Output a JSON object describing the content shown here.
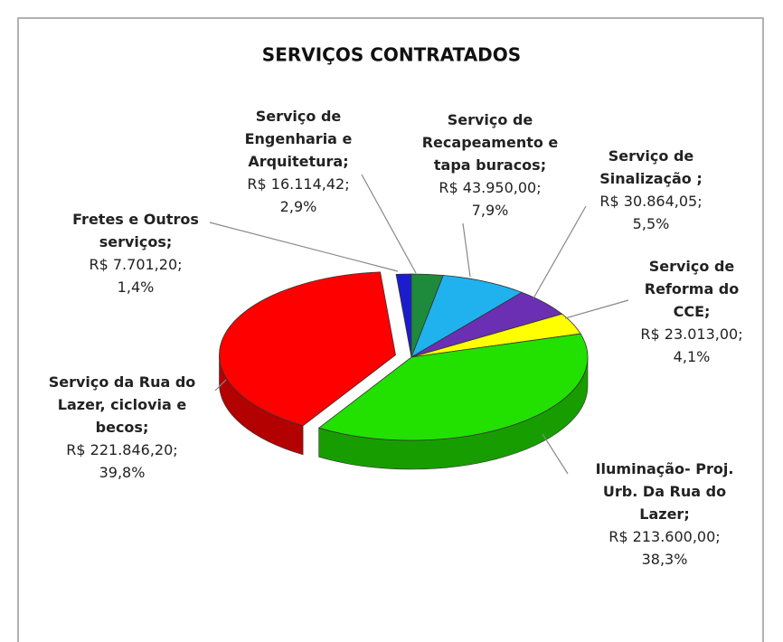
{
  "chart_data": {
    "type": "pie",
    "title": "SERVIÇOS CONTRATADOS",
    "categories": [
      "Fretes e Outros serviços;",
      "Serviço de Engenharia e Arquitetura;",
      "Serviço de Recapeamento e tapa buracos;",
      "Serviço de Sinalização ;",
      "Serviço de Reforma do CCE;",
      "Iluminação- Proj. Urb. Da Rua do Lazer;",
      "Serviço da Rua do Lazer, ciclovia e becos;"
    ],
    "values": [
      7701.2,
      16114.42,
      43950.0,
      30864.05,
      23013.0,
      213600.0,
      221846.2
    ],
    "value_labels": [
      "R$ 7.701,20;",
      "R$ 16.114,42;",
      "R$ 43.950,00;",
      "R$ 30.864,05;",
      "R$ 23.013,00;",
      "R$ 213.600,00;",
      "R$ 221.846,20;"
    ],
    "percentages": [
      1.4,
      2.9,
      7.9,
      5.5,
      4.1,
      38.3,
      39.8
    ],
    "percent_labels": [
      "1,4%",
      "2,9%",
      "7,9%",
      "5,5%",
      "4,1%",
      "38,3%",
      "39,8%"
    ],
    "colors": [
      "#1c1ccf",
      "#1e8a3c",
      "#1fb2ee",
      "#6b2fb3",
      "#ffff00",
      "#22e000",
      "#ff0000"
    ]
  }
}
